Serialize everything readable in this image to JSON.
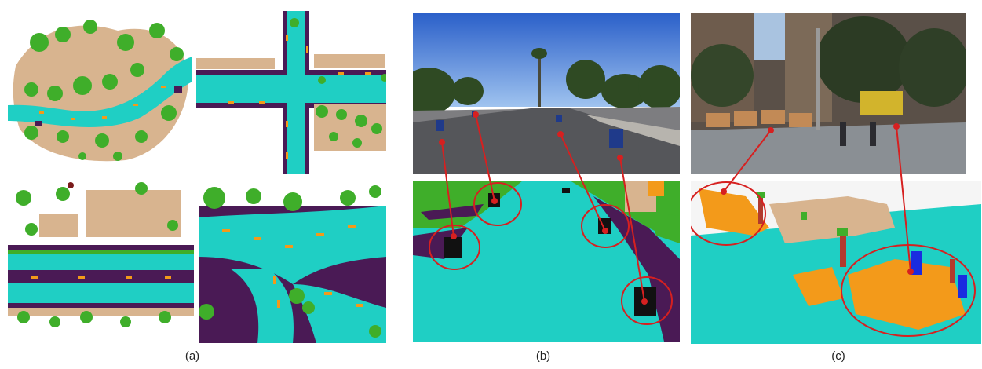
{
  "figure": {
    "captions": {
      "a": "(a)",
      "b": "(b)",
      "c": "(c)"
    },
    "colors": {
      "road": "#1fcfc4",
      "vegetation": "#3fae2a",
      "building": "#d8b48f",
      "sidewalk": "#4a1a55",
      "lane_marking": "#f39a1a",
      "object_black": "#111111",
      "arrow_red": "#d62020",
      "pole_red": "#b23a2e",
      "person_blue": "#1a2be0"
    }
  }
}
